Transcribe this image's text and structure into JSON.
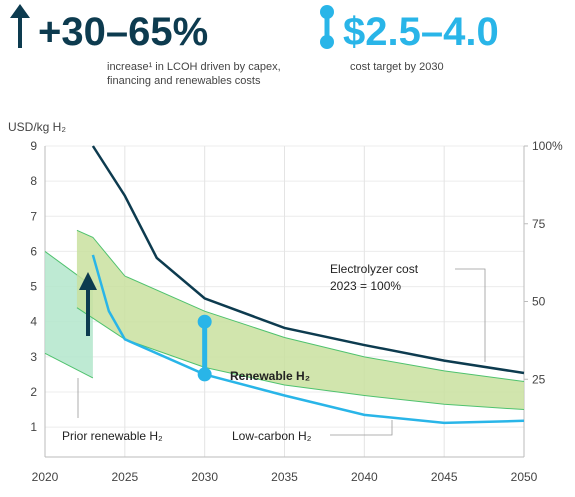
{
  "header": {
    "stat1": {
      "value": "+30–65%",
      "caption": [
        "increase¹ in LCOH driven by capex,",
        "financing and renewables costs"
      ]
    },
    "stat2": {
      "value": "$2.5–4.0",
      "caption": "cost target by 2030"
    }
  },
  "chart_data": {
    "type": "line",
    "y_label": "USD/kg H₂",
    "xlim": [
      2020,
      2050
    ],
    "xticks": [
      2020,
      2025,
      2030,
      2035,
      2040,
      2045,
      2050
    ],
    "ylim": [
      0.15,
      9
    ],
    "yticks": [
      1,
      2,
      3,
      4,
      5,
      6,
      7,
      8,
      9
    ],
    "y2lim": [
      0,
      100
    ],
    "y2ticks": [
      25,
      50,
      75,
      {
        "value": 100,
        "label": "100%"
      }
    ],
    "grid": true,
    "y2_note": "2023 = 100%",
    "series": [
      {
        "name": "Prior renewable H₂",
        "kind": "band",
        "color": "#b3e6cb",
        "line_color": "#4fc26e",
        "x": [
          2020,
          2023
        ],
        "upper": [
          6.0,
          5.0
        ],
        "lower": [
          3.1,
          2.4
        ]
      },
      {
        "name": "Renewable H₂",
        "kind": "band",
        "color": "#c9e09f",
        "line_color": "#4fc26e",
        "x": [
          2022,
          2023,
          2025,
          2030,
          2035,
          2040,
          2045,
          2050
        ],
        "upper": [
          6.6,
          6.4,
          5.3,
          4.3,
          3.55,
          3.0,
          2.6,
          2.3
        ],
        "lower": [
          4.4,
          4.1,
          3.5,
          2.7,
          2.2,
          1.9,
          1.65,
          1.5
        ]
      },
      {
        "name": "Low-carbon H₂",
        "kind": "line",
        "color": "#29b5e8",
        "x": [
          2023,
          2024,
          2025,
          2030,
          2035,
          2040,
          2045,
          2050
        ],
        "values": [
          5.9,
          4.3,
          3.5,
          2.5,
          1.9,
          1.35,
          1.12,
          1.18
        ]
      },
      {
        "name": "Electrolyzer cost",
        "kind": "line",
        "axis": "y2",
        "color": "#0d3b4f",
        "x": [
          2023,
          2025,
          2027,
          2030,
          2035,
          2040,
          2045,
          2050
        ],
        "values": [
          100,
          84,
          64,
          51,
          41.5,
          36,
          31,
          27
        ]
      }
    ],
    "target": {
      "x": 2030,
      "low": 2.5,
      "high": 4.0,
      "color": "#29b5e8"
    }
  }
}
